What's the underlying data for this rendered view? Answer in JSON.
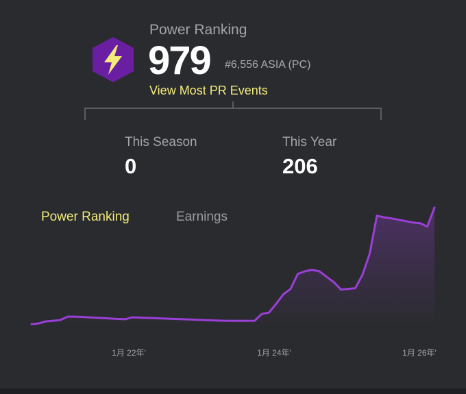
{
  "header": {
    "title": "Power Ranking",
    "score": "979",
    "rank": "#6,556 ASIA (PC)",
    "link": "View Most PR Events",
    "badge_icon": "lightning-bolt-icon"
  },
  "stats": [
    {
      "label": "This Season",
      "value": "0"
    },
    {
      "label": "This Year",
      "value": "206"
    }
  ],
  "tabs": [
    {
      "label": "Power Ranking",
      "active": true
    },
    {
      "label": "Earnings",
      "active": false
    }
  ],
  "colors": {
    "accent": "#f3ec7a",
    "line": "#9b3fd8",
    "badge": "#6a1fa3",
    "bolt": "#f3ec7a",
    "background": "#2a2b2f"
  },
  "chart_data": {
    "type": "area",
    "x_tick_labels": [
      "1月 22年'",
      "1月 24年'",
      "1月 26年'"
    ],
    "x": [
      "2021-06",
      "2021-07",
      "2021-08",
      "2021-09",
      "2021-10",
      "2021-11",
      "2021-12",
      "2022-01",
      "2022-02",
      "2022-03",
      "2022-04",
      "2022-05",
      "2022-06",
      "2022-07",
      "2022-08",
      "2022-09",
      "2022-10",
      "2022-11",
      "2022-12",
      "2023-01",
      "2023-02",
      "2023-03",
      "2023-04",
      "2023-05",
      "2023-06",
      "2023-07",
      "2023-08",
      "2023-09",
      "2023-10",
      "2023-11",
      "2023-12",
      "2024-01",
      "2024-02",
      "2024-03",
      "2024-04",
      "2024-05",
      "2024-06",
      "2024-07",
      "2024-08",
      "2024-09",
      "2024-10",
      "2024-11",
      "2024-12",
      "2025-01",
      "2025-02",
      "2025-03",
      "2025-04",
      "2025-05",
      "2025-06",
      "2025-07",
      "2025-08",
      "2025-09",
      "2025-10",
      "2025-11",
      "2025-12",
      "2026-01",
      "2026-02"
    ],
    "values": [
      0,
      5,
      20,
      25,
      30,
      55,
      55,
      53,
      50,
      47,
      44,
      41,
      38,
      36,
      50,
      48,
      46,
      44,
      42,
      40,
      38,
      36,
      34,
      32,
      30,
      28,
      26,
      25,
      24,
      24,
      24,
      25,
      75,
      85,
      150,
      220,
      260,
      370,
      390,
      400,
      390,
      350,
      310,
      255,
      260,
      265,
      365,
      520,
      800,
      788,
      780,
      770,
      760,
      750,
      745,
      720,
      860
    ],
    "ylim": [
      0,
      900
    ],
    "grid": false,
    "legend": "none"
  }
}
